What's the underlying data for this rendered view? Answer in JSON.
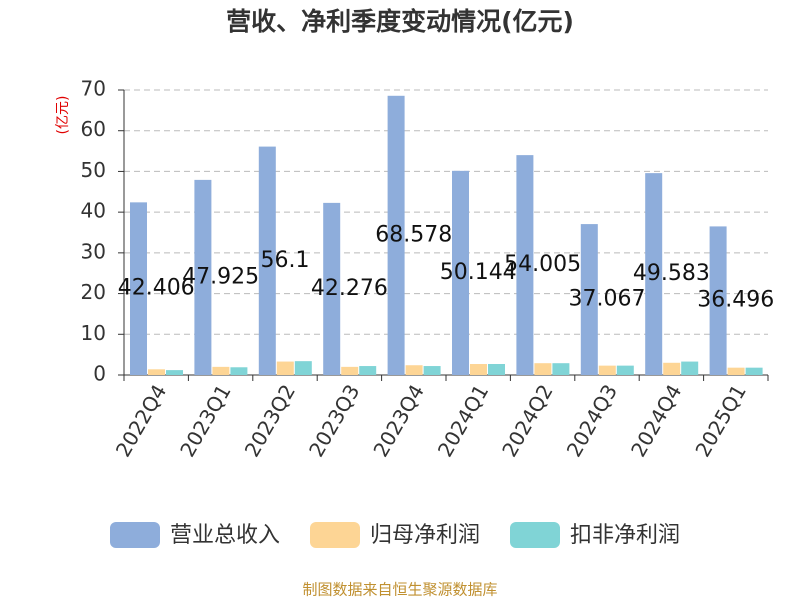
{
  "chart_data": {
    "type": "bar",
    "title": "营收、净利季度变动情况(亿元)",
    "y_axis_label": "(亿元)",
    "source": "制图数据来自恒生聚源数据库",
    "categories": [
      "2022Q4",
      "2023Q1",
      "2023Q2",
      "2023Q3",
      "2023Q4",
      "2024Q1",
      "2024Q2",
      "2024Q3",
      "2024Q4",
      "2025Q1"
    ],
    "series": [
      {
        "name": "营业总收入",
        "color": "#8eaddb",
        "show_labels": true,
        "values": [
          42.406,
          47.925,
          56.1,
          42.276,
          68.578,
          50.144,
          54.005,
          37.067,
          49.583,
          36.496
        ]
      },
      {
        "name": "归母净利润",
        "color": "#fdd595",
        "show_labels": false,
        "values": [
          1.4,
          2.0,
          3.3,
          2.0,
          2.4,
          2.7,
          2.9,
          2.3,
          3.0,
          1.8
        ]
      },
      {
        "name": "扣非净利润",
        "color": "#80d4d6",
        "show_labels": false,
        "values": [
          1.2,
          1.9,
          3.4,
          2.2,
          2.2,
          2.7,
          2.9,
          2.3,
          3.3,
          1.8
        ]
      }
    ],
    "ylim": [
      0,
      70
    ],
    "yticks": [
      0,
      10,
      20,
      30,
      40,
      50,
      60,
      70
    ],
    "grid": true,
    "legend_position": "bottom"
  }
}
